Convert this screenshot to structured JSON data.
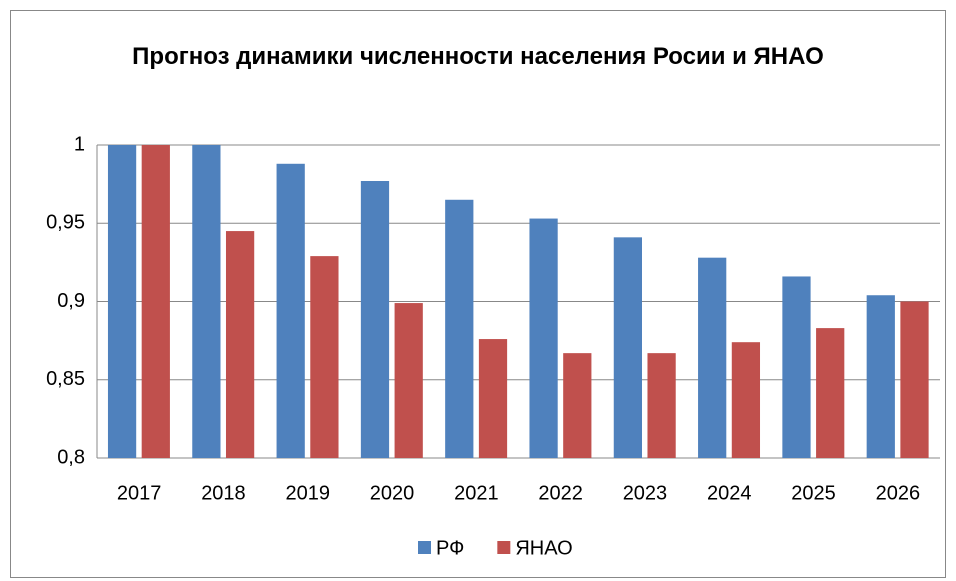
{
  "chart_data": {
    "type": "bar",
    "title": "Прогноз динамики численности населения Росии и ЯНАО",
    "categories": [
      "2017",
      "2018",
      "2019",
      "2020",
      "2021",
      "2022",
      "2023",
      "2024",
      "2025",
      "2026"
    ],
    "series": [
      {
        "name": "РФ",
        "color": "#4f81bd",
        "values": [
          1,
          1,
          0.988,
          0.977,
          0.965,
          0.953,
          0.941,
          0.928,
          0.916,
          0.904
        ]
      },
      {
        "name": "ЯНАО",
        "color": "#c0504d",
        "values": [
          1,
          0.945,
          0.929,
          0.899,
          0.876,
          0.867,
          0.867,
          0.874,
          0.883,
          0.9
        ]
      }
    ],
    "ylim": [
      0.8,
      1
    ],
    "yticks": [
      {
        "value": 0.8,
        "label": "0,8"
      },
      {
        "value": 0.85,
        "label": "0,85"
      },
      {
        "value": 0.9,
        "label": "0,9"
      },
      {
        "value": 0.95,
        "label": "0,95"
      },
      1
    ],
    "grid": true,
    "legend": "bottom"
  }
}
